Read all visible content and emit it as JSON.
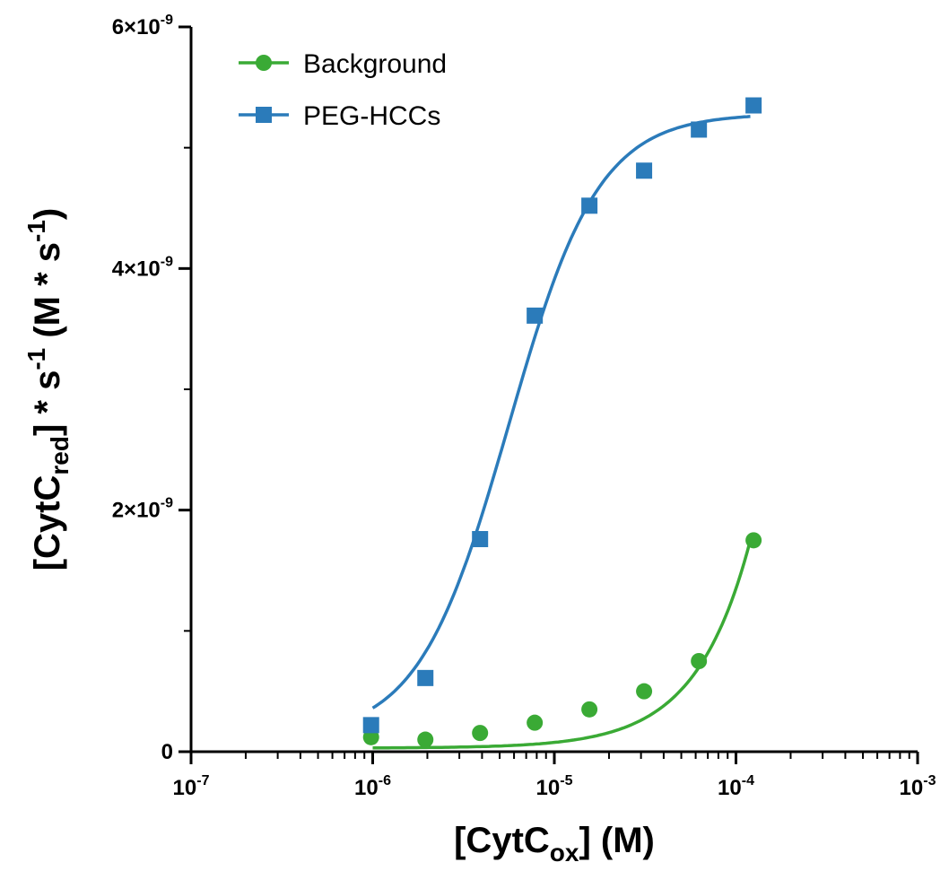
{
  "chart_data": {
    "type": "scatter",
    "x_scale": "log",
    "xlim": [
      1e-07,
      0.001
    ],
    "ylim": [
      0,
      6e-09
    ],
    "grid": false,
    "legend_position": "top-left",
    "x_ticks": [
      {
        "value": 1e-07,
        "base": "10",
        "exp": "-7"
      },
      {
        "value": 1e-06,
        "base": "10",
        "exp": "-6"
      },
      {
        "value": 1e-05,
        "base": "10",
        "exp": "-5"
      },
      {
        "value": 0.0001,
        "base": "10",
        "exp": "-4"
      },
      {
        "value": 0.001,
        "base": "10",
        "exp": "-3"
      }
    ],
    "y_ticks": [
      {
        "value": 0,
        "text": "0",
        "exp": ""
      },
      {
        "value": 2e-09,
        "text": "2×10",
        "exp": "-9"
      },
      {
        "value": 4e-09,
        "text": "4×10",
        "exp": "-9"
      },
      {
        "value": 6e-09,
        "text": "6×10",
        "exp": "-9"
      }
    ],
    "xlabel": {
      "prefix": "[CytC",
      "sub": "ox",
      "suffix": "] (M)"
    },
    "ylabel": {
      "prefix": "[CytC",
      "sub": "red",
      "mid1": "] * s",
      "sup1": "-1",
      "mid2": " (M * s",
      "sup2": "-1",
      "suffix": ")"
    },
    "series": [
      {
        "name": "Background",
        "color": "#3aaa35",
        "marker": "circle",
        "x": [
          9.8e-07,
          1.95e-06,
          3.9e-06,
          7.8e-06,
          1.56e-05,
          3.12e-05,
          6.25e-05,
          0.000125
        ],
        "y": [
          1.2e-10,
          1e-10,
          1.55e-10,
          2.4e-10,
          3.5e-10,
          5e-10,
          7.5e-10,
          1.75e-09
        ],
        "fit": {
          "model": "power",
          "x_range": [
            1e-06,
            0.00012
          ]
        }
      },
      {
        "name": "PEG-HCCs",
        "color": "#2b7bba",
        "marker": "square",
        "x": [
          9.8e-07,
          1.95e-06,
          3.9e-06,
          7.8e-06,
          1.56e-05,
          3.12e-05,
          6.25e-05,
          0.000125
        ],
        "y": [
          2.2e-10,
          6.1e-10,
          1.76e-09,
          3.61e-09,
          4.52e-09,
          4.81e-09,
          5.15e-09,
          5.35e-09
        ],
        "fit": {
          "model": "hill",
          "x_range": [
            1e-06,
            0.00012
          ]
        }
      }
    ]
  }
}
